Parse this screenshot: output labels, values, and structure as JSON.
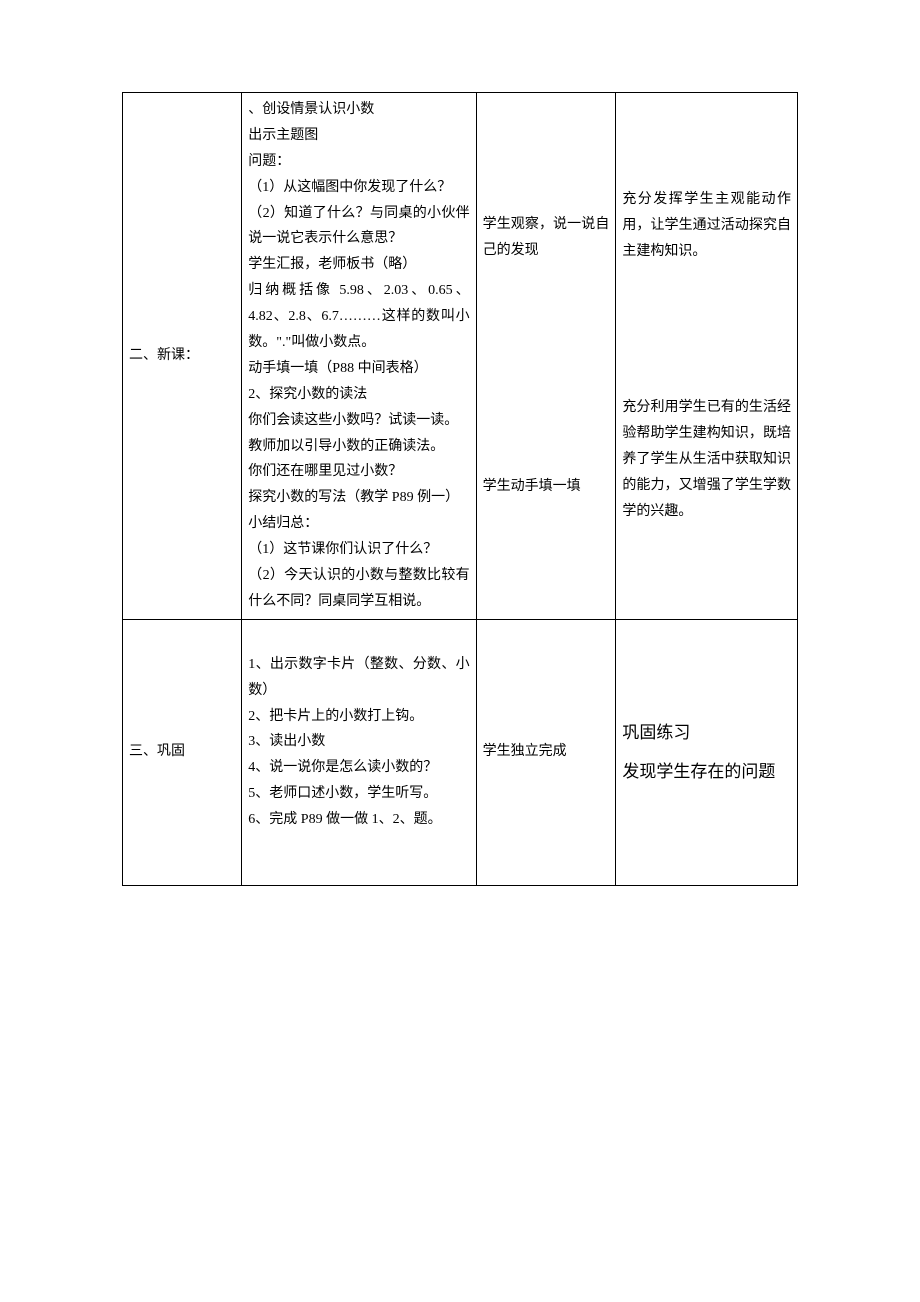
{
  "rows": [
    {
      "sectionLabel": "二、新课：",
      "teacherActivity": "、创设情景认识小数\n出示主题图\n问题：\n（1）从这幅图中你发现了什么？\n（2）知道了什么？与同桌的小伙伴说一说它表示什么意思？\n学生汇报，老师板书（略）\n归纳概括像 5.98、2.03、0.65、4.82、2.8、6.7………这样的数叫小数。\".\"叫做小数点。\n动手填一填（P88 中间表格）\n2、探究小数的读法\n你们会读这些小数吗？试读一读。\n教师加以引导小数的正确读法。\n你们还在哪里见过小数？\n探究小数的写法（教学 P89 例一）\n小结归总：\n（1）这节课你们认识了什么？\n（2）今天认识的小数与整数比较有什么不同？同桌同学互相说。",
      "studentActivity1": "学生观察，说一说自己的发现",
      "studentActivity2": "学生动手填一填",
      "designIntent1": "充分发挥学生主观能动作用，让学生通过活动探究自主建构知识。",
      "designIntent2": "充分利用学生已有的生活经验帮助学生建构知识，既培养了学生从生活中获取知识的能力，又增强了学生学数学的兴趣。"
    },
    {
      "sectionLabel": "三、巩固",
      "teacherActivityItems": [
        "1、出示数字卡片（整数、分数、小数）",
        "2、把卡片上的小数打上钩。",
        "3、读出小数",
        "4、说一说你是怎么读小数的？",
        "5、老师口述小数，学生听写。",
        "6、完成 P89 做一做 1、2、题。"
      ],
      "studentActivity": "学生独立完成",
      "designIntentLarge1": "巩固练习",
      "designIntentLarge2": "发现学生存在的问题"
    }
  ],
  "colors": {
    "border": "#000000",
    "text": "#000000",
    "background": "#ffffff"
  },
  "fontSizes": {
    "body": 14,
    "large": 17
  }
}
